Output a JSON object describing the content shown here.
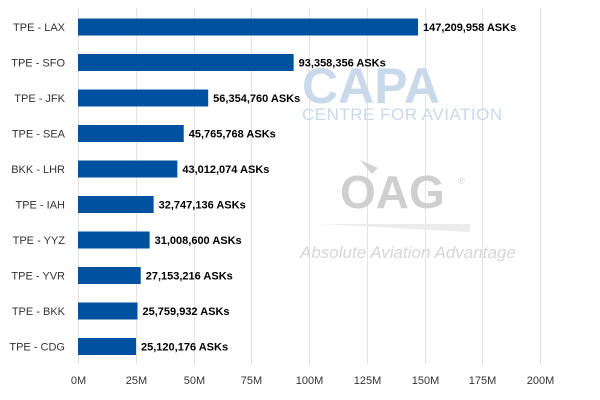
{
  "chart_data": {
    "type": "bar",
    "orientation": "horizontal",
    "categories": [
      "TPE - LAX",
      "TPE - SFO",
      "TPE - JFK",
      "TPE - SEA",
      "BKK - LHR",
      "TPE - IAH",
      "TPE - YYZ",
      "TPE - YVR",
      "TPE - BKK",
      "TPE - CDG"
    ],
    "values": [
      147209958,
      93358356,
      56354760,
      45765768,
      43012074,
      32747136,
      31008600,
      27153216,
      25759932,
      25120176
    ],
    "data_labels": [
      "147,209,958 ASKs",
      "93,358,356 ASKs",
      "56,354,760 ASKs",
      "45,765,768 ASKs",
      "43,012,074 ASKs",
      "32,747,136 ASKs",
      "31,008,600 ASKs",
      "27,153,216 ASKs",
      "25,759,932 ASKs",
      "25,120,176 ASKs"
    ],
    "xlim": [
      0,
      200000000
    ],
    "x_ticks": [
      0,
      25000000,
      50000000,
      75000000,
      100000000,
      125000000,
      150000000,
      175000000,
      200000000
    ],
    "x_tick_labels": [
      "0M",
      "25M",
      "50M",
      "75M",
      "100M",
      "125M",
      "150M",
      "175M",
      "200M"
    ],
    "grid": true,
    "bar_color": "#0052a0",
    "grid_color": "#e2e2e2"
  },
  "watermarks": {
    "capa_title": "CAPA",
    "capa_subtitle": "CENTRE FOR AVIATION",
    "oag_title": "OAG",
    "oag_tagline": "Absolute Aviation Advantage",
    "oag_registered": "®"
  }
}
